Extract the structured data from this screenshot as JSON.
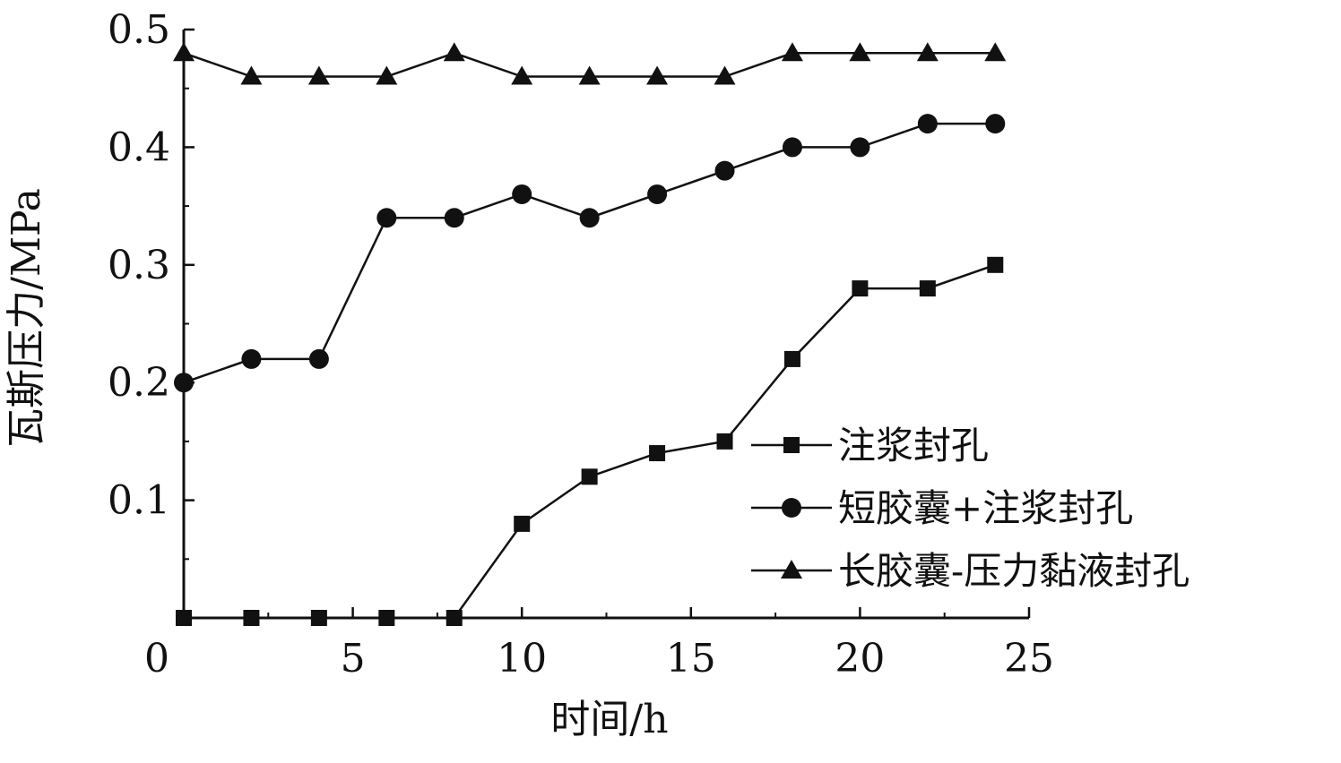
{
  "chart_data": {
    "type": "line",
    "title": "",
    "xlabel": "时间/h",
    "ylabel": "瓦斯压力/MPa",
    "xlim": [
      0,
      25
    ],
    "ylim": [
      0,
      0.5
    ],
    "x_ticks": [
      "0",
      "5",
      "10",
      "15",
      "20",
      "25"
    ],
    "y_ticks": [
      "0.1",
      "0.2",
      "0.3",
      "0.4",
      "0.5"
    ],
    "grid": false,
    "legend_position": "right",
    "series": [
      {
        "name": "注浆封孔",
        "marker": "square",
        "x": [
          0,
          2,
          4,
          6,
          8,
          10,
          12,
          14,
          16,
          18,
          20,
          22,
          24
        ],
        "values": [
          0,
          0,
          0,
          0,
          0,
          0.08,
          0.12,
          0.14,
          0.15,
          0.22,
          0.28,
          0.28,
          0.3
        ]
      },
      {
        "name": "短胶囊+注浆封孔",
        "marker": "circle",
        "x": [
          0,
          2,
          4,
          6,
          8,
          10,
          12,
          14,
          16,
          18,
          20,
          22,
          24
        ],
        "values": [
          0.2,
          0.22,
          0.22,
          0.34,
          0.34,
          0.36,
          0.34,
          0.36,
          0.38,
          0.4,
          0.4,
          0.42,
          0.42
        ]
      },
      {
        "name": "长胶囊-压力黏液封孔",
        "marker": "triangle",
        "x": [
          0,
          2,
          4,
          6,
          8,
          10,
          12,
          14,
          16,
          18,
          20,
          22,
          24
        ],
        "values": [
          0.48,
          0.46,
          0.46,
          0.46,
          0.48,
          0.46,
          0.46,
          0.46,
          0.46,
          0.48,
          0.48,
          0.48,
          0.48
        ]
      }
    ],
    "colors": {
      "line": "#111111",
      "background": "#ffffff"
    }
  }
}
